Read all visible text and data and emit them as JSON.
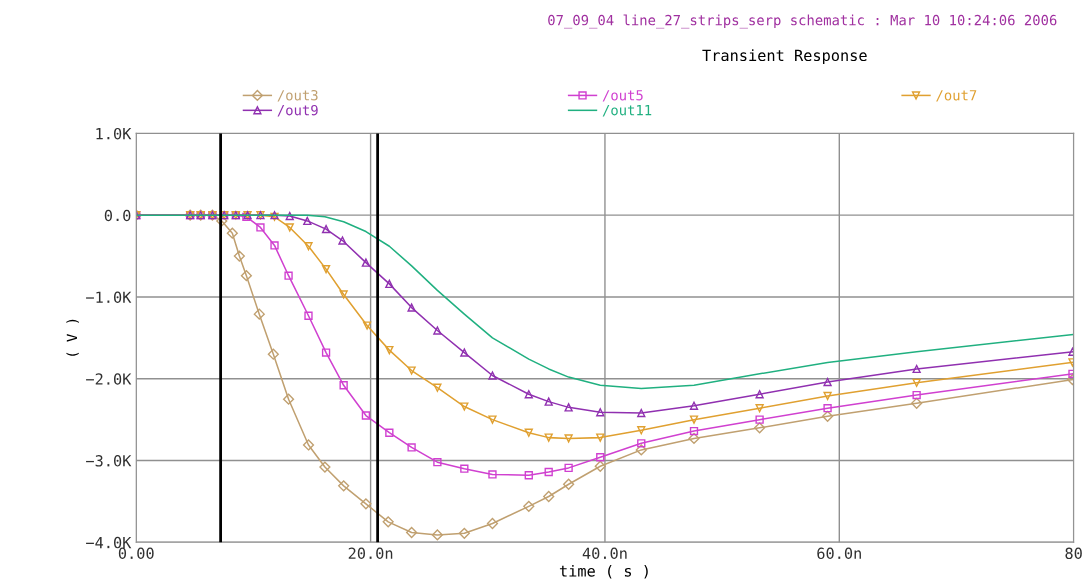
{
  "chart_data": {
    "type": "line",
    "title": "Transient Response",
    "subtitle": "07_09_04 line_27_strips_serp schematic : Mar 10 10:24:06 2006",
    "xlabel": "time ( s )",
    "ylabel": "( V )",
    "xlim": [
      0,
      80
    ],
    "xticks": [
      {
        "value": 0,
        "label": "0.00"
      },
      {
        "value": 20,
        "label": "20.0n"
      },
      {
        "value": 40,
        "label": "40.0n"
      },
      {
        "value": 60,
        "label": "60.0n"
      },
      {
        "value": 80,
        "label": "80"
      }
    ],
    "ylim": [
      -4000,
      1000
    ],
    "yticks": [
      {
        "value": -4000,
        "label": "−4.0K"
      },
      {
        "value": -3000,
        "label": "−3.0K"
      },
      {
        "value": -2000,
        "label": "−2.0K"
      },
      {
        "value": -1000,
        "label": "−1.0K"
      },
      {
        "value": 0,
        "label": "0.0"
      },
      {
        "value": 1000,
        "label": "1.0K"
      }
    ],
    "grid": true,
    "legend": "top",
    "ref_lines": [
      {
        "axis": "x",
        "value": 7.2,
        "label": null,
        "color": "#000000"
      },
      {
        "axis": "x",
        "value": 20.6,
        "label": null,
        "color": "#000000"
      }
    ],
    "series": [
      {
        "name": "/out3",
        "color": "#c0a070",
        "marker": "diamond",
        "x": [
          0,
          4.6,
          5.5,
          6.5,
          7.3,
          8.2,
          8.8,
          9.4,
          10.5,
          11.7,
          13.0,
          14.7,
          16.1,
          17.7,
          19.6,
          21.5,
          23.5,
          25.7,
          28.0,
          30.4,
          33.5,
          35.2,
          36.9,
          39.6,
          43.1,
          47.6,
          53.2,
          59.0,
          66.6,
          79.9
        ],
        "values": [
          0,
          0,
          0,
          0,
          -70,
          -220,
          -500,
          -740,
          -1210,
          -1700,
          -2250,
          -2810,
          -3080,
          -3310,
          -3530,
          -3750,
          -3880,
          -3910,
          -3890,
          -3770,
          -3560,
          -3440,
          -3290,
          -3070,
          -2870,
          -2730,
          -2600,
          -2460,
          -2300,
          -2010
        ]
      },
      {
        "name": "/out5",
        "color": "#d040d0",
        "marker": "square",
        "x": [
          0,
          4.6,
          5.5,
          6.5,
          7.5,
          8.5,
          9.4,
          10.6,
          11.8,
          13.0,
          14.7,
          16.2,
          17.7,
          19.6,
          21.6,
          23.5,
          25.7,
          28.0,
          30.4,
          33.5,
          35.2,
          36.9,
          39.6,
          43.1,
          47.6,
          53.2,
          59.0,
          66.6,
          79.9
        ],
        "values": [
          0,
          0,
          0,
          0,
          0,
          0,
          -20,
          -150,
          -370,
          -740,
          -1230,
          -1680,
          -2080,
          -2450,
          -2660,
          -2840,
          -3020,
          -3100,
          -3170,
          -3180,
          -3140,
          -3090,
          -2960,
          -2790,
          -2640,
          -2500,
          -2360,
          -2200,
          -1940
        ]
      },
      {
        "name": "/out7",
        "color": "#e0a030",
        "marker": "triangle_down",
        "x": [
          0,
          4.6,
          5.5,
          6.5,
          7.5,
          8.5,
          9.5,
          10.6,
          11.8,
          13.1,
          14.7,
          16.2,
          17.7,
          19.7,
          21.6,
          23.5,
          25.7,
          28.0,
          30.4,
          33.5,
          35.2,
          36.9,
          39.6,
          43.1,
          47.6,
          53.2,
          59.0,
          66.6,
          79.9
        ],
        "values": [
          0,
          0,
          0,
          0,
          0,
          0,
          0,
          0,
          -20,
          -150,
          -380,
          -660,
          -970,
          -1350,
          -1650,
          -1900,
          -2110,
          -2340,
          -2500,
          -2660,
          -2720,
          -2730,
          -2720,
          -2630,
          -2500,
          -2360,
          -2210,
          -2050,
          -1800
        ]
      },
      {
        "name": "/out9",
        "color": "#9030b0",
        "marker": "triangle",
        "x": [
          0,
          4.6,
          5.5,
          6.5,
          7.5,
          8.5,
          9.5,
          10.6,
          11.8,
          13.1,
          14.6,
          16.2,
          17.6,
          19.6,
          21.6,
          23.5,
          25.7,
          28.0,
          30.4,
          33.5,
          35.2,
          36.9,
          39.6,
          43.1,
          47.6,
          53.2,
          59.0,
          66.6,
          79.9
        ],
        "values": [
          0,
          0,
          0,
          0,
          0,
          0,
          0,
          0,
          0,
          -10,
          -70,
          -170,
          -310,
          -580,
          -840,
          -1130,
          -1410,
          -1680,
          -1960,
          -2190,
          -2280,
          -2350,
          -2410,
          -2420,
          -2330,
          -2190,
          -2040,
          -1880,
          -1670
        ]
      },
      {
        "name": "/out11",
        "color": "#20b080",
        "marker": "none",
        "x": [
          0,
          4.6,
          5.5,
          6.5,
          7.5,
          8.5,
          9.5,
          10.6,
          11.8,
          13.1,
          14.6,
          16.1,
          17.7,
          19.6,
          21.6,
          23.5,
          25.7,
          28.0,
          30.4,
          33.5,
          35.2,
          36.9,
          39.6,
          43.1,
          47.6,
          53.2,
          59.0,
          66.6,
          79.9
        ],
        "values": [
          0,
          0,
          0,
          0,
          0,
          0,
          0,
          0,
          0,
          0,
          0,
          -20,
          -80,
          -200,
          -380,
          -620,
          -920,
          -1210,
          -1500,
          -1760,
          -1880,
          -1980,
          -2080,
          -2120,
          -2080,
          -1940,
          -1800,
          -1670,
          -1460
        ]
      }
    ]
  }
}
